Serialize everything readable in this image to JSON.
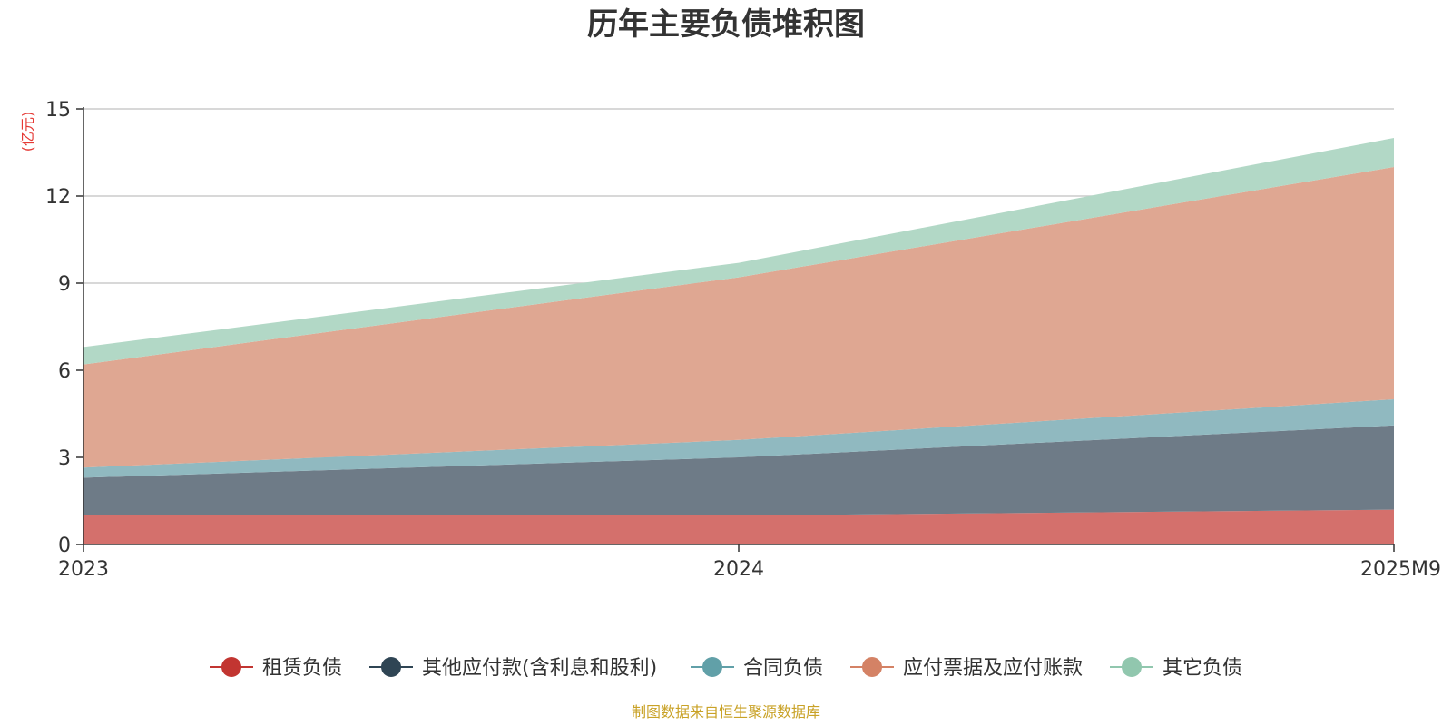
{
  "chart_data": {
    "type": "area",
    "stacked": true,
    "title": "历年主要负债堆积图",
    "unit": "(亿元)",
    "categories": [
      "2023",
      "2024",
      "2025M9"
    ],
    "ylim": [
      0,
      15
    ],
    "yticks": [
      "0",
      "3",
      "6",
      "9",
      "12",
      "15"
    ],
    "grid": true,
    "legend_position": "bottom",
    "series": [
      {
        "name": "租赁负债",
        "values": [
          1.0,
          1.0,
          1.2
        ],
        "color": "#c23531",
        "fill": "#d4706c"
      },
      {
        "name": "其他应付款(含利息和股利)",
        "values": [
          1.3,
          2.0,
          2.9
        ],
        "color": "#2f4554",
        "fill": "#6e7b87"
      },
      {
        "name": "合同负债",
        "values": [
          0.35,
          0.6,
          0.9
        ],
        "color": "#61a0a8",
        "fill": "#90b9c0"
      },
      {
        "name": "应付票据及应付账款",
        "values": [
          3.55,
          5.6,
          8.0
        ],
        "color": "#d48265",
        "fill": "#dfa792"
      },
      {
        "name": "其它负债",
        "values": [
          0.6,
          0.5,
          1.0
        ],
        "color": "#91c7ae",
        "fill": "#b2d8c6"
      }
    ],
    "source": "制图数据来自恒生聚源数据库"
  }
}
